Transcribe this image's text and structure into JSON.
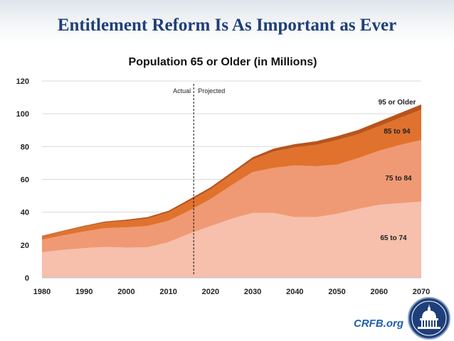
{
  "slide": {
    "title": "Entitlement Reform Is As Important as Ever",
    "footer_link": "CRFB.org",
    "seal_icon": "capitol-dome-seal-icon"
  },
  "chart_data": {
    "type": "area",
    "stacked": true,
    "title": "Population 65 or Older (in Millions)",
    "xlabel": "",
    "ylabel": "",
    "xlim": [
      1980,
      2070
    ],
    "ylim": [
      0,
      120
    ],
    "x_ticks": [
      1980,
      1990,
      2000,
      2010,
      2020,
      2030,
      2040,
      2050,
      2060,
      2070
    ],
    "y_ticks": [
      0,
      20,
      40,
      60,
      80,
      100,
      120
    ],
    "grid": "horizontal",
    "legend": "inline labels",
    "divider": {
      "x": 2016,
      "left_label": "Actual",
      "right_label": "Projected"
    },
    "x": [
      1980,
      1985,
      1990,
      1995,
      2000,
      2005,
      2010,
      2015,
      2020,
      2025,
      2030,
      2035,
      2040,
      2045,
      2050,
      2055,
      2060,
      2065,
      2070
    ],
    "series": [
      {
        "name": "65 to 74",
        "color": "#f6c0ad",
        "values": [
          15.6,
          17.0,
          18.1,
          18.8,
          18.4,
          18.6,
          21.7,
          27.0,
          31.5,
          36.0,
          39.5,
          39.5,
          37.0,
          37.0,
          39.0,
          42.0,
          44.5,
          45.5,
          46.5
        ]
      },
      {
        "name": "75 to 84",
        "color": "#ef9a74",
        "values": [
          7.7,
          8.8,
          10.1,
          11.5,
          12.3,
          13.0,
          13.1,
          14.0,
          16.5,
          20.5,
          25.0,
          27.5,
          31.5,
          31.0,
          30.0,
          31.0,
          33.0,
          35.5,
          37.5
        ]
      },
      {
        "name": "85 to 94",
        "color": "#e0722e",
        "values": [
          2.0,
          2.5,
          3.0,
          3.4,
          3.9,
          4.5,
          5.0,
          5.7,
          5.9,
          6.4,
          7.5,
          10.0,
          11.0,
          13.0,
          15.0,
          14.5,
          15.0,
          16.5,
          18.5
        ]
      },
      {
        "name": "95 or Older",
        "color": "#b9541c",
        "values": [
          0.3,
          0.4,
          0.5,
          0.6,
          0.8,
          0.9,
          1.0,
          1.2,
          1.3,
          1.4,
          1.5,
          1.8,
          2.0,
          2.2,
          2.4,
          2.6,
          2.8,
          3.0,
          3.2
        ]
      }
    ]
  }
}
